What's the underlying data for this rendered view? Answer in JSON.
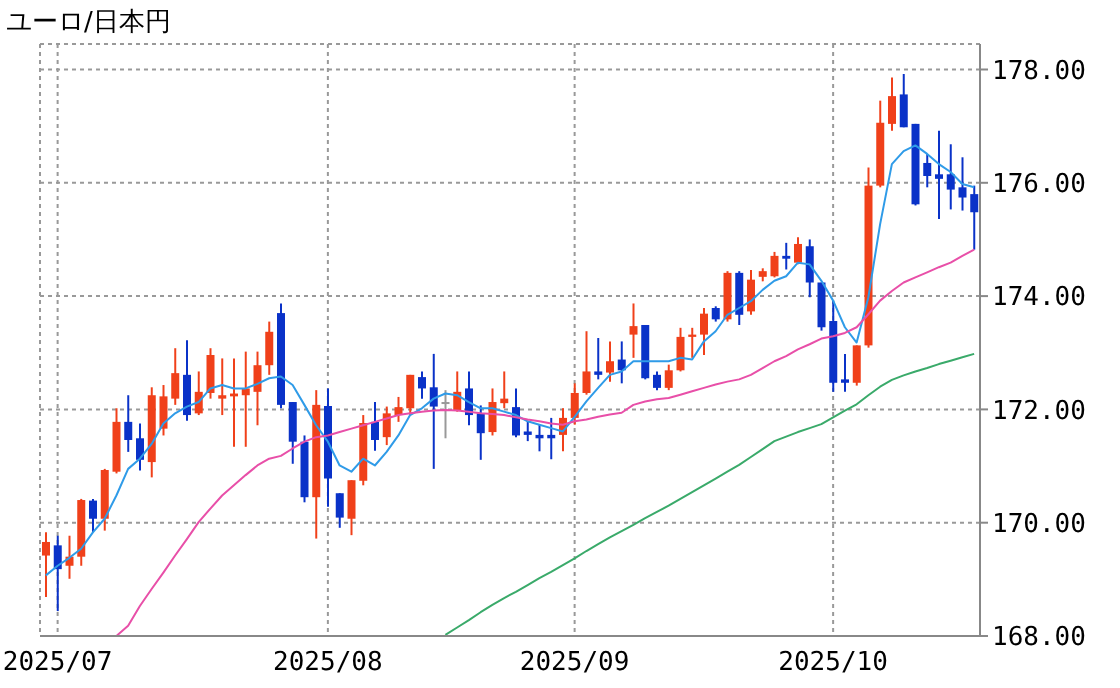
{
  "chart_data": {
    "type": "candlestick",
    "title": "ユーロ/日本円",
    "categories": [
      null,
      "2025/07",
      null,
      null,
      null,
      null,
      null,
      null,
      null,
      null,
      null,
      null,
      null,
      null,
      null,
      null,
      null,
      null,
      null,
      null,
      null,
      null,
      null,
      null,
      "2025/08",
      null,
      null,
      null,
      null,
      null,
      null,
      null,
      null,
      null,
      null,
      null,
      null,
      null,
      null,
      null,
      null,
      null,
      null,
      null,
      null,
      "2025/09",
      null,
      null,
      null,
      null,
      null,
      null,
      null,
      null,
      null,
      null,
      null,
      null,
      null,
      null,
      null,
      null,
      null,
      null,
      null,
      null,
      null,
      "2025/10",
      null,
      null,
      null,
      null,
      null,
      null,
      null,
      null,
      null,
      null,
      null,
      null
    ],
    "ohlc": [
      [
        169.42,
        169.83,
        168.69,
        169.66
      ],
      [
        169.6,
        169.77,
        168.44,
        169.18
      ],
      [
        169.24,
        169.77,
        169.01,
        169.4
      ],
      [
        169.4,
        170.42,
        169.24,
        170.4
      ],
      [
        170.39,
        170.42,
        169.83,
        170.07
      ],
      [
        170.07,
        170.95,
        169.86,
        170.93
      ],
      [
        170.9,
        172.02,
        170.87,
        171.78
      ],
      [
        171.78,
        172.25,
        171.25,
        171.46
      ],
      [
        171.49,
        171.75,
        170.92,
        171.11
      ],
      [
        171.07,
        172.39,
        170.8,
        172.25
      ],
      [
        171.66,
        172.43,
        171.54,
        172.23
      ],
      [
        172.19,
        173.08,
        172.08,
        172.64
      ],
      [
        172.61,
        173.22,
        171.8,
        171.9
      ],
      [
        171.93,
        172.67,
        171.9,
        172.31
      ],
      [
        172.29,
        173.08,
        172.19,
        172.96
      ],
      [
        172.19,
        172.9,
        171.9,
        172.25
      ],
      [
        172.23,
        172.9,
        171.34,
        172.28
      ],
      [
        172.25,
        173.02,
        171.34,
        172.37
      ],
      [
        172.31,
        173.02,
        171.72,
        172.78
      ],
      [
        172.78,
        173.55,
        172.61,
        173.37
      ],
      [
        173.7,
        173.87,
        172.02,
        172.08
      ],
      [
        172.13,
        172.13,
        171.04,
        171.43
      ],
      [
        171.43,
        171.54,
        170.36,
        170.45
      ],
      [
        170.45,
        172.34,
        169.72,
        172.08
      ],
      [
        172.06,
        172.37,
        170.28,
        170.78
      ],
      [
        170.52,
        170.52,
        169.91,
        170.09
      ],
      [
        170.07,
        170.75,
        169.78,
        170.75
      ],
      [
        170.74,
        171.9,
        170.66,
        171.76
      ],
      [
        171.78,
        172.13,
        171.27,
        171.46
      ],
      [
        171.51,
        172.05,
        171.37,
        171.93
      ],
      [
        171.9,
        172.22,
        171.78,
        172.04
      ],
      [
        172.02,
        172.61,
        171.9,
        172.61
      ],
      [
        172.57,
        172.67,
        172.19,
        172.37
      ],
      [
        172.39,
        172.98,
        170.95,
        172.05
      ],
      [
        172.13,
        172.34,
        171.49,
        172.13
      ],
      [
        171.98,
        172.67,
        171.96,
        172.31
      ],
      [
        172.37,
        172.67,
        171.72,
        171.9
      ],
      [
        171.93,
        172.07,
        171.11,
        171.58
      ],
      [
        171.6,
        172.37,
        171.54,
        172.13
      ],
      [
        172.11,
        172.67,
        172.02,
        172.19
      ],
      [
        172.04,
        172.37,
        171.51,
        171.54
      ],
      [
        171.61,
        171.79,
        171.44,
        171.55
      ],
      [
        171.55,
        171.73,
        171.26,
        171.49
      ],
      [
        171.55,
        171.85,
        171.12,
        171.49
      ],
      [
        171.55,
        172.02,
        171.26,
        171.85
      ],
      [
        171.85,
        172.46,
        171.73,
        172.29
      ],
      [
        172.29,
        173.38,
        172.26,
        172.67
      ],
      [
        172.67,
        173.26,
        172.53,
        172.61
      ],
      [
        172.65,
        173.2,
        172.49,
        172.85
      ],
      [
        172.88,
        173.2,
        172.46,
        172.69
      ],
      [
        173.32,
        173.87,
        172.91,
        173.47
      ],
      [
        173.49,
        173.49,
        172.53,
        172.55
      ],
      [
        172.61,
        172.67,
        172.34,
        172.38
      ],
      [
        172.38,
        172.79,
        172.34,
        172.69
      ],
      [
        172.69,
        173.44,
        172.67,
        173.28
      ],
      [
        173.28,
        173.44,
        172.91,
        173.32
      ],
      [
        173.32,
        173.79,
        172.96,
        173.69
      ],
      [
        173.79,
        173.82,
        173.55,
        173.59
      ],
      [
        173.59,
        174.44,
        173.55,
        174.41
      ],
      [
        174.41,
        174.44,
        173.49,
        173.67
      ],
      [
        173.73,
        174.46,
        173.67,
        174.29
      ],
      [
        174.34,
        174.49,
        174.26,
        174.44
      ],
      [
        174.35,
        174.78,
        174.33,
        174.71
      ],
      [
        174.71,
        174.94,
        174.47,
        174.66
      ],
      [
        174.59,
        175.04,
        174.56,
        174.92
      ],
      [
        174.88,
        175.0,
        173.98,
        174.24
      ],
      [
        174.24,
        174.24,
        173.39,
        173.45
      ],
      [
        173.56,
        173.92,
        172.31,
        172.47
      ],
      [
        172.53,
        172.98,
        172.31,
        172.47
      ],
      [
        172.47,
        173.13,
        172.42,
        173.13
      ],
      [
        173.13,
        176.27,
        173.09,
        175.95
      ],
      [
        175.95,
        177.45,
        175.92,
        177.06
      ],
      [
        177.04,
        177.86,
        176.92,
        177.53
      ],
      [
        177.56,
        177.92,
        176.98,
        176.98
      ],
      [
        177.04,
        177.04,
        175.6,
        175.62
      ],
      [
        176.35,
        176.51,
        175.92,
        176.12
      ],
      [
        176.15,
        176.92,
        175.36,
        176.07
      ],
      [
        176.15,
        176.68,
        175.53,
        175.88
      ],
      [
        175.92,
        176.45,
        175.51,
        175.74
      ],
      [
        175.8,
        175.95,
        174.82,
        175.48
      ]
    ],
    "colors": [
      "#f0401a",
      "#0a32c8",
      "#f0401a",
      "#f0401a",
      "#0a32c8",
      "#f0401a",
      "#f0401a",
      "#0a32c8",
      "#0a32c8",
      "#f0401a",
      "#f0401a",
      "#f0401a",
      "#0a32c8",
      "#f0401a",
      "#f0401a",
      "#f0401a",
      "#f0401a",
      "#f0401a",
      "#f0401a",
      "#f0401a",
      "#0a32c8",
      "#0a32c8",
      "#0a32c8",
      "#f0401a",
      "#0a32c8",
      "#0a32c8",
      "#f0401a",
      "#f0401a",
      "#0a32c8",
      "#f0401a",
      "#f0401a",
      "#f0401a",
      "#0a32c8",
      "#0a32c8",
      "#999999",
      "#f0401a",
      "#0a32c8",
      "#0a32c8",
      "#f0401a",
      "#f0401a",
      "#0a32c8",
      "#0a32c8",
      "#0a32c8",
      "#0a32c8",
      "#f0401a",
      "#f0401a",
      "#f0401a",
      "#0a32c8",
      "#f0401a",
      "#0a32c8",
      "#f0401a",
      "#0a32c8",
      "#0a32c8",
      "#f0401a",
      "#f0401a",
      "#f0401a",
      "#f0401a",
      "#0a32c8",
      "#f0401a",
      "#0a32c8",
      "#f0401a",
      "#f0401a",
      "#f0401a",
      "#0a32c8",
      "#f0401a",
      "#0a32c8",
      "#0a32c8",
      "#0a32c8",
      "#0a32c8",
      "#f0401a",
      "#f0401a",
      "#f0401a",
      "#f0401a",
      "#0a32c8",
      "#0a32c8",
      "#0a32c8",
      "#0a32c8",
      "#0a32c8",
      "#0a32c8",
      "#0a32c8"
    ],
    "series": [
      {
        "type": "line",
        "color": "#2f9be8",
        "values": [
          169.07,
          169.24,
          169.38,
          169.54,
          169.83,
          170.07,
          170.48,
          170.95,
          171.13,
          171.39,
          171.75,
          171.93,
          172.05,
          172.13,
          172.37,
          172.43,
          172.37,
          172.37,
          172.45,
          172.55,
          172.58,
          172.43,
          172.08,
          171.72,
          171.43,
          171.01,
          170.9,
          171.13,
          171.01,
          171.25,
          171.54,
          171.9,
          172.02,
          172.19,
          172.28,
          172.25,
          172.13,
          172.02,
          172.02,
          171.96,
          171.9,
          171.79,
          171.73,
          171.67,
          171.61,
          171.87,
          172.14,
          172.38,
          172.61,
          172.67,
          172.85,
          172.85,
          172.85,
          172.85,
          172.91,
          172.88,
          173.2,
          173.38,
          173.67,
          173.79,
          173.91,
          174.11,
          174.27,
          174.35,
          174.59,
          174.56,
          174.27,
          173.92,
          173.45,
          173.18,
          173.98,
          175.27,
          176.33,
          176.56,
          176.66,
          176.51,
          176.33,
          176.19,
          175.98,
          175.92
        ]
      },
      {
        "type": "line",
        "color": "#e84fa8",
        "values": [
          null,
          null,
          null,
          null,
          null,
          null,
          168.0,
          168.18,
          168.53,
          168.83,
          169.12,
          169.42,
          169.71,
          170.01,
          170.25,
          170.48,
          170.66,
          170.84,
          171.01,
          171.13,
          171.18,
          171.31,
          171.43,
          171.51,
          171.54,
          171.6,
          171.66,
          171.72,
          171.78,
          171.84,
          171.9,
          171.93,
          171.96,
          171.98,
          171.99,
          171.98,
          171.96,
          171.93,
          171.92,
          171.9,
          171.86,
          171.82,
          171.79,
          171.75,
          171.73,
          171.79,
          171.82,
          171.87,
          171.91,
          171.94,
          172.08,
          172.14,
          172.18,
          172.2,
          172.26,
          172.32,
          172.38,
          172.44,
          172.49,
          172.53,
          172.61,
          172.73,
          172.85,
          172.94,
          173.06,
          173.15,
          173.25,
          173.29,
          173.35,
          173.45,
          173.68,
          173.92,
          174.09,
          174.24,
          174.33,
          174.42,
          174.51,
          174.59,
          174.71,
          174.82
        ]
      },
      {
        "type": "line",
        "color": "#3aaa6a",
        "values": [
          null,
          null,
          null,
          null,
          null,
          null,
          null,
          null,
          null,
          null,
          null,
          null,
          null,
          null,
          null,
          null,
          null,
          null,
          null,
          null,
          null,
          null,
          null,
          null,
          null,
          null,
          null,
          null,
          null,
          null,
          null,
          null,
          null,
          null,
          168.02,
          168.15,
          168.28,
          168.42,
          168.55,
          168.67,
          168.78,
          168.9,
          169.02,
          169.13,
          169.25,
          169.37,
          169.5,
          169.62,
          169.74,
          169.85,
          169.96,
          170.08,
          170.19,
          170.3,
          170.42,
          170.54,
          170.66,
          170.78,
          170.9,
          171.02,
          171.16,
          171.3,
          171.44,
          171.52,
          171.6,
          171.67,
          171.74,
          171.86,
          171.98,
          172.09,
          172.25,
          172.4,
          172.52,
          172.6,
          172.67,
          172.73,
          172.8,
          172.86,
          172.92,
          172.98
        ]
      }
    ],
    "ylim": [
      168,
      178.45
    ],
    "yticks": [
      {
        "value": 168,
        "label": "168.00"
      },
      {
        "value": 170,
        "label": "170.00"
      },
      {
        "value": 172,
        "label": "172.00"
      },
      {
        "value": 174,
        "label": "174.00"
      },
      {
        "value": 176,
        "label": "176.00"
      },
      {
        "value": 178,
        "label": "178.00"
      }
    ],
    "grid": true
  }
}
